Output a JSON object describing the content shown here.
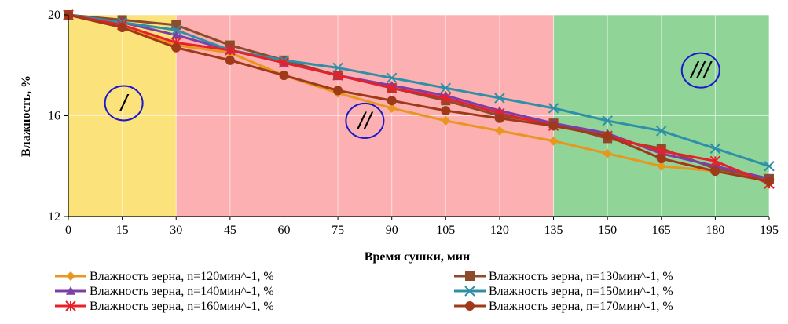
{
  "chart_data": {
    "type": "line",
    "title": "",
    "xlabel": "Время сушки, мин",
    "ylabel": "Влажность, %",
    "x": [
      0,
      15,
      30,
      45,
      60,
      75,
      90,
      105,
      120,
      135,
      150,
      165,
      180,
      195
    ],
    "xlim": [
      0,
      195
    ],
    "ylim": [
      12,
      20
    ],
    "yticks": [
      "12",
      "16",
      "20"
    ],
    "xticks": [
      "0",
      "15",
      "30",
      "45",
      "60",
      "75",
      "90",
      "105",
      "120",
      "135",
      "150",
      "165",
      "180",
      "195"
    ],
    "grid": true,
    "legend_position": "bottom",
    "zones": [
      {
        "label": "/",
        "x_from": 0,
        "x_to": 30,
        "color": "#fbe27a"
      },
      {
        "label": "//",
        "x_from": 30,
        "x_to": 135,
        "color": "#fdb0b1"
      },
      {
        "label": "///",
        "x_from": 135,
        "x_to": 195,
        "color": "#90d497"
      }
    ],
    "series": [
      {
        "name": "Влажность зерна, n=120мин^-1, %",
        "color": "#e8961e",
        "marker": "diamond",
        "values": [
          20.0,
          19.5,
          18.8,
          18.5,
          17.6,
          16.9,
          16.3,
          15.8,
          15.4,
          15.0,
          14.5,
          14.0,
          13.8,
          13.5
        ]
      },
      {
        "name": "Влажность зерна, n=130мин^-1, %",
        "color": "#8c4b2b",
        "marker": "square",
        "values": [
          20.0,
          19.8,
          19.6,
          18.8,
          18.2,
          17.6,
          17.1,
          16.6,
          16.0,
          15.7,
          15.1,
          14.7,
          13.9,
          13.5
        ]
      },
      {
        "name": "Влажность зерна, n=140мин^-1, %",
        "color": "#7a3fa8",
        "marker": "triangle",
        "values": [
          20.0,
          19.7,
          19.2,
          18.6,
          18.1,
          17.6,
          17.2,
          16.8,
          16.2,
          15.7,
          15.3,
          14.5,
          14.0,
          13.5
        ]
      },
      {
        "name": "Влажность зерна, n=150мин^-1, %",
        "color": "#2e8fa8",
        "marker": "x",
        "values": [
          20.0,
          19.7,
          19.4,
          18.6,
          18.2,
          17.9,
          17.5,
          17.1,
          16.7,
          16.3,
          15.8,
          15.4,
          14.7,
          14.0
        ]
      },
      {
        "name": "Влажность зерна, n=160мин^-1, %",
        "color": "#e8202a",
        "marker": "star",
        "values": [
          20.0,
          19.6,
          18.9,
          18.6,
          18.1,
          17.6,
          17.1,
          16.7,
          16.1,
          15.6,
          15.2,
          14.6,
          14.2,
          13.3
        ]
      },
      {
        "name": "Влажность зерна, n=170мин^-1, %",
        "color": "#9e3a1a",
        "marker": "circle",
        "values": [
          20.0,
          19.5,
          18.7,
          18.2,
          17.6,
          17.0,
          16.6,
          16.2,
          15.9,
          15.6,
          15.2,
          14.3,
          13.8,
          13.4
        ]
      }
    ]
  }
}
